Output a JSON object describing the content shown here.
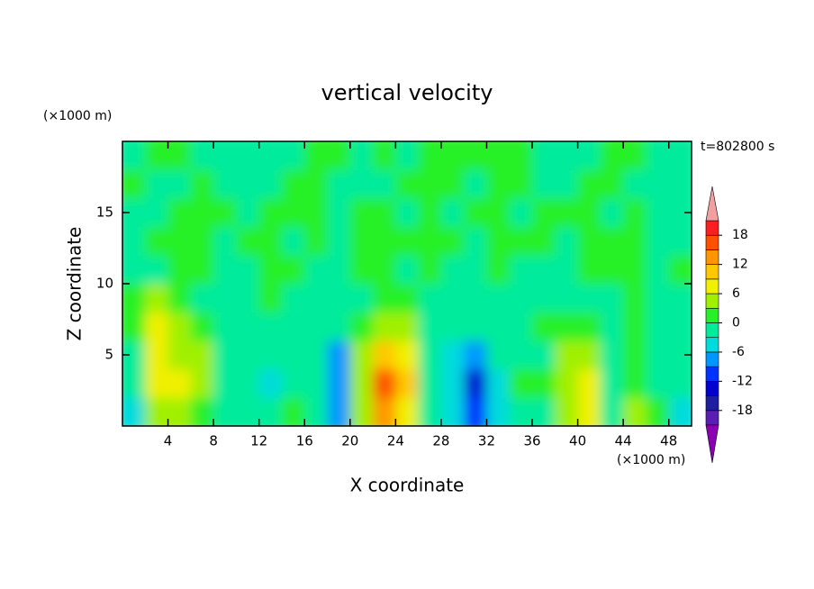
{
  "chart_data": {
    "type": "contour",
    "title": "vertical velocity",
    "x_label": "X coordinate",
    "y_label": "Z coordinate",
    "x_unit": "(×1000 m)",
    "y_unit": "(×1000 m)",
    "time_label": "t=802800 s",
    "xlim": [
      0,
      50
    ],
    "ylim": [
      0,
      20
    ],
    "xticks": [
      4,
      8,
      12,
      16,
      20,
      24,
      28,
      32,
      36,
      40,
      44,
      48
    ],
    "yticks": [
      5,
      10,
      15
    ],
    "x": [
      1,
      3,
      5,
      7,
      9,
      11,
      13,
      15,
      17,
      19,
      21,
      23,
      25,
      27,
      29,
      31,
      33,
      35,
      37,
      39,
      41,
      43,
      45,
      47,
      49
    ],
    "y": [
      1,
      3,
      5,
      7,
      9,
      11,
      13,
      15,
      17,
      19
    ],
    "z": [
      [
        -4,
        3,
        5,
        2,
        -1,
        -2,
        -2,
        1,
        -2,
        -8,
        3,
        14,
        7,
        -2,
        -6,
        -10,
        -4,
        -2,
        -1,
        4,
        7,
        -2,
        4,
        2,
        -4
      ],
      [
        -2,
        6,
        8,
        5,
        -2,
        -3,
        -5,
        -1,
        -3,
        -8,
        4,
        16,
        9,
        -2,
        -6,
        -14,
        -6,
        2,
        1,
        5,
        7,
        -1,
        2,
        -1,
        -2
      ],
      [
        -1,
        7,
        5,
        3,
        -1,
        -2,
        -2,
        -3,
        -2,
        -7,
        3,
        10,
        8,
        -1,
        -4,
        -9,
        -3,
        -1,
        -1,
        3,
        3,
        -1,
        1,
        -1,
        -1
      ],
      [
        1,
        6,
        3,
        1,
        -1,
        -1,
        -1,
        -1,
        -2,
        -2,
        1,
        4,
        3,
        -1,
        -2,
        -2,
        -1,
        -1,
        1,
        1,
        1,
        -1,
        1,
        -2,
        -1
      ],
      [
        1,
        3,
        1,
        -1,
        -1,
        -1,
        1,
        -1,
        -1,
        -1,
        -1,
        1,
        1,
        -1,
        -1,
        -1,
        -1,
        -1,
        -1,
        -1,
        -1,
        -1,
        1,
        -1,
        -1
      ],
      [
        -1,
        -1,
        1,
        1,
        -1,
        -1,
        1,
        1,
        -1,
        -1,
        1,
        1,
        -1,
        1,
        -1,
        -1,
        1,
        -1,
        -1,
        -1,
        1,
        1,
        1,
        -1,
        1
      ],
      [
        -1,
        1,
        1,
        1,
        -1,
        1,
        1,
        -1,
        1,
        -1,
        1,
        1,
        1,
        1,
        1,
        -1,
        1,
        1,
        1,
        -1,
        1,
        1,
        1,
        -1,
        -1
      ],
      [
        -1,
        -1,
        1,
        1,
        1,
        -1,
        1,
        1,
        1,
        -1,
        1,
        1,
        -1,
        1,
        -1,
        1,
        1,
        -1,
        1,
        1,
        1,
        -1,
        1,
        -1,
        -1
      ],
      [
        1,
        -1,
        -1,
        1,
        -1,
        -1,
        -1,
        1,
        1,
        -1,
        -1,
        -1,
        1,
        1,
        1,
        -1,
        1,
        1,
        -1,
        -1,
        1,
        1,
        -1,
        -1,
        -1
      ],
      [
        -1,
        1,
        1,
        -1,
        -1,
        -1,
        -1,
        -1,
        1,
        1,
        -1,
        1,
        -1,
        1,
        1,
        1,
        1,
        1,
        -1,
        -1,
        -1,
        1,
        1,
        -1,
        -1
      ]
    ],
    "levels": [
      -21,
      -18,
      -15,
      -12,
      -9,
      -6,
      -3,
      0,
      3,
      6,
      9,
      12,
      15,
      18,
      21
    ],
    "colors": [
      "#8c00b4",
      "#5a1eb4",
      "#1e1ea0",
      "#0000d2",
      "#0032ff",
      "#0096ff",
      "#00dcdc",
      "#00eb9b",
      "#28f028",
      "#a0f000",
      "#f0f000",
      "#ffc800",
      "#ff9600",
      "#ff5000",
      "#ff1e1e",
      "#f0a0a0"
    ],
    "colorbar_ticks": [
      -18,
      -12,
      -6,
      0,
      6,
      12,
      18
    ]
  }
}
